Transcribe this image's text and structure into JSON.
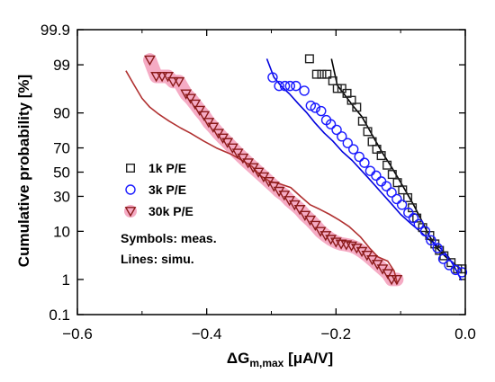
{
  "chart_data": {
    "type": "scatter",
    "title": "",
    "xlabel": {
      "main": "ΔG",
      "sub": "m,max",
      "unit": " [μA/V]"
    },
    "ylabel": "Cumulative probability [%]",
    "xlim": [
      -0.6,
      0.0
    ],
    "xticks": [
      -0.6,
      -0.4,
      -0.2,
      0.0
    ],
    "xtick_labels": [
      "−0.6",
      "−0.4",
      "−0.2",
      "0.0"
    ],
    "yscale": "probit",
    "yticks": [
      0.1,
      1,
      10,
      30,
      50,
      70,
      90,
      99,
      99.9
    ],
    "ytick_labels": [
      "0.1",
      "1",
      "10",
      "30",
      "50",
      "70",
      "90",
      "99",
      "99.9"
    ],
    "notes": [
      "Symbols: meas.",
      "Lines: simu."
    ],
    "series": [
      {
        "name": "1k P/E",
        "marker": "square",
        "color": "#222222",
        "line_color": "#000000",
        "points": [
          [
            -0.241,
            99.3
          ],
          [
            -0.23,
            98.3
          ],
          [
            -0.222,
            98.3
          ],
          [
            -0.214,
            98.3
          ],
          [
            -0.205,
            97.6
          ],
          [
            -0.198,
            96.5
          ],
          [
            -0.191,
            96.5
          ],
          [
            -0.183,
            95.6
          ],
          [
            -0.176,
            94.0
          ],
          [
            -0.168,
            92.0
          ],
          [
            -0.159,
            86.5
          ],
          [
            -0.151,
            81.0
          ],
          [
            -0.144,
            74.5
          ],
          [
            -0.137,
            69.0
          ],
          [
            -0.13,
            64.0
          ],
          [
            -0.121,
            56.0
          ],
          [
            -0.113,
            48.0
          ],
          [
            -0.105,
            41.0
          ],
          [
            -0.097,
            35.0
          ],
          [
            -0.089,
            29.0
          ],
          [
            -0.082,
            22.0
          ],
          [
            -0.075,
            16.0
          ],
          [
            -0.066,
            11.5
          ],
          [
            -0.055,
            8.5
          ],
          [
            -0.047,
            6.0
          ],
          [
            -0.04,
            4.5
          ],
          [
            -0.033,
            3.5
          ],
          [
            -0.022,
            2.5
          ],
          [
            -0.012,
            1.8
          ],
          [
            -0.005,
            1.8
          ]
        ],
        "simulation": [
          [
            -0.207,
            99.3
          ],
          [
            -0.198,
            97.0
          ],
          [
            -0.185,
            95.0
          ],
          [
            -0.172,
            92.0
          ],
          [
            -0.16,
            88.5
          ],
          [
            -0.15,
            83.0
          ],
          [
            -0.14,
            76.0
          ],
          [
            -0.128,
            66.0
          ],
          [
            -0.116,
            56.0
          ],
          [
            -0.104,
            45.0
          ],
          [
            -0.092,
            34.0
          ],
          [
            -0.08,
            24.0
          ],
          [
            -0.068,
            15.0
          ],
          [
            -0.056,
            8.5
          ],
          [
            -0.044,
            5.0
          ],
          [
            -0.03,
            3.3
          ],
          [
            -0.016,
            2.3
          ],
          [
            -0.006,
            1.7
          ]
        ]
      },
      {
        "name": "3k P/E",
        "marker": "circle",
        "color": "#1a1aff",
        "line_color": "#0000dd",
        "points": [
          [
            -0.298,
            98.0
          ],
          [
            -0.288,
            96.9
          ],
          [
            -0.279,
            96.9
          ],
          [
            -0.271,
            96.9
          ],
          [
            -0.262,
            96.9
          ],
          [
            -0.249,
            96.1
          ],
          [
            -0.239,
            92.5
          ],
          [
            -0.232,
            91.8
          ],
          [
            -0.223,
            90.7
          ],
          [
            -0.215,
            87.0
          ],
          [
            -0.208,
            85.0
          ],
          [
            -0.199,
            82.0
          ],
          [
            -0.191,
            78.0
          ],
          [
            -0.182,
            73.5
          ],
          [
            -0.173,
            69.0
          ],
          [
            -0.164,
            63.0
          ],
          [
            -0.156,
            58.0
          ],
          [
            -0.147,
            51.0
          ],
          [
            -0.138,
            47.0
          ],
          [
            -0.13,
            42.0
          ],
          [
            -0.122,
            38.0
          ],
          [
            -0.114,
            33.0
          ],
          [
            -0.106,
            28.0
          ],
          [
            -0.098,
            24.0
          ],
          [
            -0.088,
            19.0
          ],
          [
            -0.08,
            16.0
          ],
          [
            -0.072,
            13.0
          ],
          [
            -0.062,
            10.0
          ],
          [
            -0.053,
            7.0
          ],
          [
            -0.043,
            5.0
          ],
          [
            -0.034,
            3.0
          ],
          [
            -0.025,
            2.2
          ],
          [
            -0.015,
            1.7
          ],
          [
            -0.005,
            1.5
          ]
        ],
        "simulation": [
          [
            -0.307,
            99.3
          ],
          [
            -0.296,
            98.0
          ],
          [
            -0.285,
            96.9
          ],
          [
            -0.272,
            95.5
          ],
          [
            -0.258,
            93.0
          ],
          [
            -0.245,
            90.0
          ],
          [
            -0.232,
            85.5
          ],
          [
            -0.218,
            80.0
          ],
          [
            -0.205,
            75.0
          ],
          [
            -0.19,
            67.0
          ],
          [
            -0.175,
            60.0
          ],
          [
            -0.16,
            51.0
          ],
          [
            -0.145,
            42.0
          ],
          [
            -0.13,
            33.0
          ],
          [
            -0.115,
            25.0
          ],
          [
            -0.1,
            18.0
          ],
          [
            -0.085,
            13.5
          ],
          [
            -0.07,
            10.0
          ],
          [
            -0.055,
            7.0
          ],
          [
            -0.04,
            5.2
          ],
          [
            -0.026,
            3.3
          ],
          [
            -0.016,
            1.9
          ],
          [
            -0.006,
            0.95
          ]
        ]
      },
      {
        "name": "30k P/E",
        "marker": "triangle-down",
        "color": "#8b1a1a",
        "line_color": "#b03030",
        "glow": "#f28fb0",
        "points": [
          [
            -0.488,
            99.25
          ],
          [
            -0.478,
            98.1
          ],
          [
            -0.469,
            98.1
          ],
          [
            -0.46,
            98.1
          ],
          [
            -0.452,
            97.5
          ],
          [
            -0.443,
            97.5
          ],
          [
            -0.432,
            95.5
          ],
          [
            -0.425,
            94.5
          ],
          [
            -0.418,
            93.0
          ],
          [
            -0.411,
            91.0
          ],
          [
            -0.404,
            89.0
          ],
          [
            -0.397,
            86.0
          ],
          [
            -0.39,
            83.5
          ],
          [
            -0.382,
            80.0
          ],
          [
            -0.375,
            77.0
          ],
          [
            -0.368,
            74.0
          ],
          [
            -0.36,
            70.0
          ],
          [
            -0.352,
            66.0
          ],
          [
            -0.344,
            62.0
          ],
          [
            -0.336,
            58.0
          ],
          [
            -0.328,
            54.0
          ],
          [
            -0.32,
            50.0
          ],
          [
            -0.312,
            46.0
          ],
          [
            -0.304,
            42.0
          ],
          [
            -0.296,
            38.0
          ],
          [
            -0.288,
            34.0
          ],
          [
            -0.28,
            31.0
          ],
          [
            -0.272,
            27.0
          ],
          [
            -0.264,
            24.0
          ],
          [
            -0.256,
            21.0
          ],
          [
            -0.248,
            17.5
          ],
          [
            -0.24,
            15.0
          ],
          [
            -0.232,
            12.5
          ],
          [
            -0.224,
            10.0
          ],
          [
            -0.216,
            8.5
          ],
          [
            -0.208,
            7.3
          ],
          [
            -0.2,
            6.5
          ],
          [
            -0.192,
            6.0
          ],
          [
            -0.184,
            5.8
          ],
          [
            -0.176,
            5.5
          ],
          [
            -0.168,
            5.0
          ],
          [
            -0.16,
            4.3
          ],
          [
            -0.152,
            3.6
          ],
          [
            -0.144,
            2.9
          ],
          [
            -0.136,
            2.3
          ],
          [
            -0.128,
            1.8
          ],
          [
            -0.12,
            1.4
          ],
          [
            -0.114,
            1.0
          ],
          [
            -0.106,
            1.0
          ]
        ],
        "simulation": [
          [
            -0.525,
            98.6
          ],
          [
            -0.512,
            97.0
          ],
          [
            -0.5,
            94.5
          ],
          [
            -0.488,
            92.0
          ],
          [
            -0.474,
            89.5
          ],
          [
            -0.458,
            86.5
          ],
          [
            -0.44,
            83.0
          ],
          [
            -0.425,
            80.0
          ],
          [
            -0.405,
            75.0
          ],
          [
            -0.385,
            70.0
          ],
          [
            -0.362,
            65.0
          ],
          [
            -0.345,
            60.0
          ],
          [
            -0.33,
            55.0
          ],
          [
            -0.317,
            47.0
          ],
          [
            -0.302,
            42.0
          ],
          [
            -0.287,
            40.0
          ],
          [
            -0.27,
            37.0
          ],
          [
            -0.255,
            30.0
          ],
          [
            -0.24,
            24.0
          ],
          [
            -0.225,
            21.0
          ],
          [
            -0.21,
            18.0
          ],
          [
            -0.195,
            15.0
          ],
          [
            -0.18,
            12.0
          ],
          [
            -0.162,
            8.0
          ],
          [
            -0.148,
            5.0
          ],
          [
            -0.135,
            3.3
          ],
          [
            -0.12,
            2.7
          ],
          [
            -0.11,
            1.6
          ],
          [
            -0.105,
            0.75
          ]
        ]
      }
    ]
  }
}
